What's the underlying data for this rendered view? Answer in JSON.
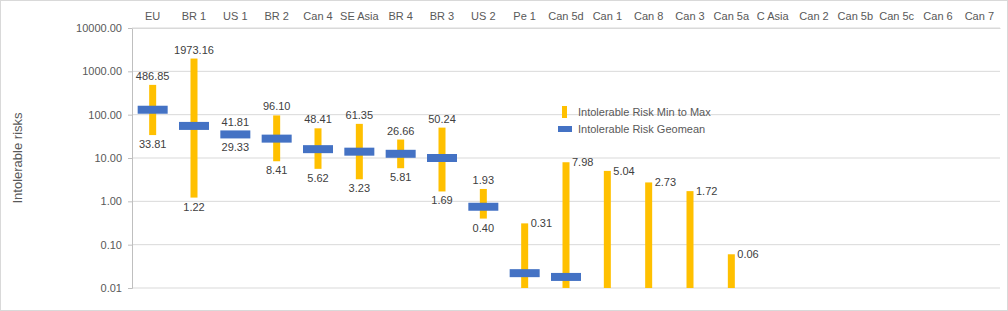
{
  "chart_data": {
    "type": "range",
    "y_label": "Intolerable risks",
    "categories": [
      "EU",
      "BR 1",
      "US 1",
      "BR 2",
      "Can 4",
      "SE Asia",
      "BR 4",
      "BR 3",
      "US 2",
      "Pe 1",
      "Can 5d",
      "Can 1",
      "Can 8",
      "Can 3",
      "Can 5a",
      "C Asia",
      "Can 2",
      "Can 5b",
      "Can 5c",
      "Can 6",
      "Can 7"
    ],
    "series": [
      {
        "name": "Intolerable Risk Min to Max",
        "type": "range",
        "color": "#FFC000",
        "max": [
          486.85,
          1973.16,
          41.81,
          96.1,
          48.41,
          61.35,
          26.66,
          50.24,
          1.93,
          0.31,
          7.98,
          5.04,
          2.73,
          1.72,
          0.06,
          null,
          null,
          null,
          null,
          null,
          null
        ],
        "min": [
          33.81,
          1.22,
          29.33,
          8.41,
          5.62,
          3.23,
          5.81,
          1.69,
          0.4,
          0.001,
          0.001,
          0.001,
          0.001,
          0.001,
          0.001,
          null,
          null,
          null,
          null,
          null,
          null
        ],
        "max_labels": [
          "486.85",
          "1973.16",
          "41.81",
          "96.10",
          "48.41",
          "61.35",
          "26.66",
          "50.24",
          "1.93",
          "0.31",
          "7.98",
          "5.04",
          "2.73",
          "1.72",
          "0.06",
          null,
          null,
          null,
          null,
          null,
          null
        ],
        "min_labels": [
          "33.81",
          "1.22",
          "29.33",
          "8.41",
          "5.62",
          "3.23",
          "5.81",
          "1.69",
          "0.40",
          null,
          null,
          null,
          null,
          null,
          null,
          null,
          null,
          null,
          null,
          null,
          null
        ]
      },
      {
        "name": "Intolerable Risk Geomean",
        "type": "marker",
        "marker": "dash",
        "color": "#4472C4",
        "values": [
          130,
          55,
          35,
          28,
          16,
          14,
          12.5,
          10,
          0.75,
          0.022,
          0.018,
          null,
          null,
          null,
          null,
          null,
          null,
          null,
          null,
          null,
          null
        ]
      }
    ],
    "ylim": [
      0.01,
      10000
    ],
    "yticks": [
      {
        "value": 0.01,
        "label": "0.01"
      },
      {
        "value": 0.1,
        "label": "0.10"
      },
      {
        "value": 1,
        "label": "1.00"
      },
      {
        "value": 10,
        "label": "10.00"
      },
      {
        "value": 100,
        "label": "100.00"
      },
      {
        "value": 1000,
        "label": "1000.00"
      },
      {
        "value": 10000,
        "label": "10000.00"
      }
    ],
    "log": "y",
    "grid": true,
    "legend": "center",
    "data_labels": true
  }
}
